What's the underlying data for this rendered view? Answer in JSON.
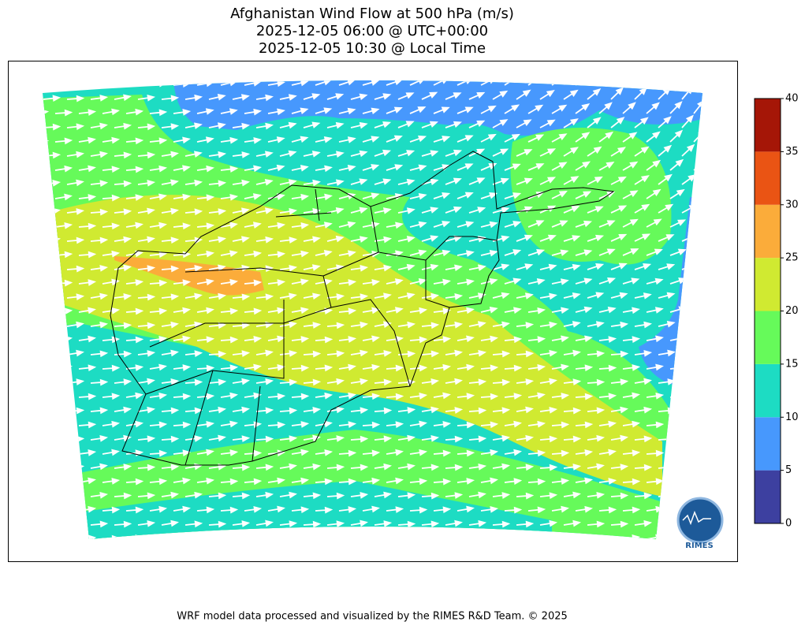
{
  "title": [
    "Afghanistan Wind Flow at 500 hPa (m/s)",
    "2025-12-05 06:00 @ UTC+00:00",
    "2025-12-05 10:30 @ Local Time"
  ],
  "colorbar": {
    "lim": [
      0,
      40
    ],
    "ticks": [
      0,
      5,
      10,
      15,
      20,
      25,
      30,
      35,
      40
    ],
    "colors": [
      "#3d40a0",
      "#4798fd",
      "#1ddcc3",
      "#66fa5a",
      "#d0ea31",
      "#fbac3a",
      "#ea5414",
      "#a51607"
    ]
  },
  "logo": "RIMES",
  "footer": "WRF model data processed and visualized by the RIMES R&D Team. © 2025"
}
